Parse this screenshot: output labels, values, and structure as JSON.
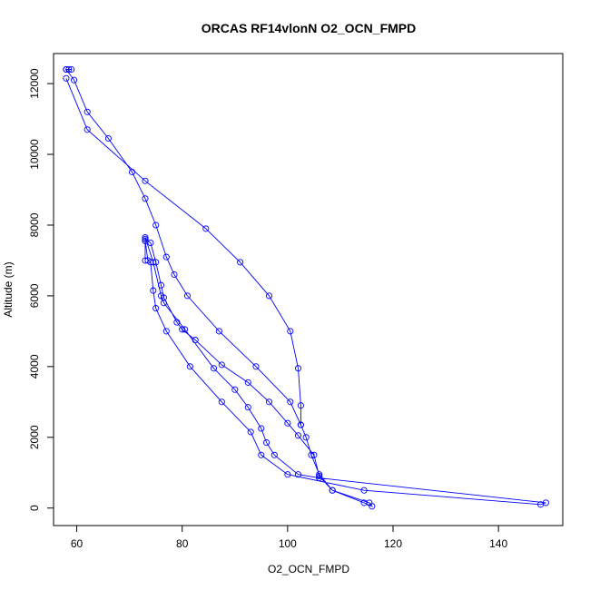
{
  "chart_data": {
    "type": "line",
    "title": "ORCAS RF14vlonN O2_OCN_FMPD",
    "xlabel": "O2_OCN_FMPD",
    "ylabel": "Altitude (m)",
    "xlim": [
      55.6,
      152.2
    ],
    "ylim": [
      -495,
      12850
    ],
    "xticks": [
      60,
      80,
      100,
      120,
      140
    ],
    "yticks": [
      0,
      2000,
      4000,
      6000,
      8000,
      10000,
      12000
    ],
    "xtick_labels": [
      "60",
      "80",
      "100",
      "120",
      "140"
    ],
    "ytick_labels": [
      "0",
      "2000",
      "4000",
      "6000",
      "8000",
      "10000",
      "12000"
    ],
    "grid": false,
    "legend": "none",
    "color": "#0000ff",
    "marker": "open-circle",
    "series": [
      {
        "points": [
          [
            58.0,
            12400
          ],
          [
            58.5,
            12400
          ],
          [
            59.0,
            12400
          ],
          [
            58.0,
            12400
          ],
          [
            59.5,
            12100
          ],
          [
            62.0,
            11200
          ],
          [
            66.0,
            10450
          ],
          [
            70.5,
            9500
          ],
          [
            73.0,
            8750
          ],
          [
            75.0,
            8000
          ],
          [
            77.0,
            7100
          ],
          [
            78.5,
            6600
          ],
          [
            81.0,
            6000
          ],
          [
            87.0,
            5000
          ],
          [
            94.0,
            4000
          ],
          [
            100.5,
            3000
          ],
          [
            102.5,
            2350
          ],
          [
            103.5,
            2000
          ],
          [
            104.5,
            1500
          ],
          [
            106.0,
            950
          ],
          [
            108.5,
            500
          ],
          [
            114.5,
            150
          ],
          [
            116.0,
            50
          ],
          [
            115.5,
            150
          ],
          [
            108.5,
            500
          ],
          [
            106.0,
            900
          ],
          [
            105.0,
            1500
          ],
          [
            102.0,
            2050
          ],
          [
            100.0,
            2400
          ],
          [
            96.5,
            3000
          ],
          [
            92.5,
            3550
          ],
          [
            87.5,
            4050
          ],
          [
            82.5,
            4750
          ],
          [
            80.0,
            5050
          ],
          [
            79.0,
            5250
          ],
          [
            76.5,
            5950
          ],
          [
            76.0,
            6300
          ],
          [
            75.0,
            6950
          ],
          [
            74.0,
            7500
          ],
          [
            73.0,
            7600
          ],
          [
            73.0,
            7550
          ],
          [
            73.5,
            7000
          ],
          [
            74.0,
            6950
          ],
          [
            74.5,
            6150
          ],
          [
            75.0,
            5650
          ],
          [
            77.0,
            5000
          ],
          [
            81.5,
            4000
          ],
          [
            87.5,
            3000
          ],
          [
            93.0,
            2150
          ],
          [
            95.0,
            1500
          ],
          [
            100.0,
            950
          ],
          [
            114.5,
            500
          ],
          [
            148.0,
            100
          ],
          [
            149.0,
            150
          ],
          [
            106.0,
            850
          ],
          [
            102.0,
            950
          ],
          [
            97.5,
            1500
          ],
          [
            96.0,
            1850
          ],
          [
            95.0,
            2250
          ],
          [
            92.5,
            2850
          ],
          [
            90.0,
            3350
          ],
          [
            86.0,
            3950
          ],
          [
            80.5,
            5050
          ],
          [
            76.5,
            5800
          ],
          [
            76.0,
            6000
          ],
          [
            74.5,
            6950
          ],
          [
            73.0,
            7650
          ],
          [
            73.0,
            7000
          ]
        ]
      },
      {
        "points": [
          [
            58.0,
            12150
          ],
          [
            62.0,
            10700
          ],
          [
            73.0,
            9250
          ],
          [
            84.5,
            7900
          ],
          [
            91.0,
            6950
          ],
          [
            96.5,
            6000
          ],
          [
            100.5,
            5000
          ],
          [
            102.0,
            3950
          ],
          [
            102.5,
            2900
          ],
          [
            102.5,
            2350
          ]
        ]
      }
    ]
  }
}
